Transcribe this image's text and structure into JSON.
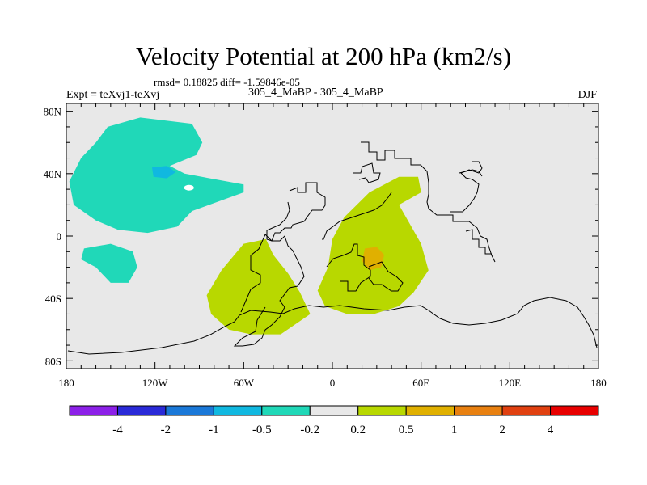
{
  "chart_data": {
    "type": "heatmap",
    "title": "Velocity Potential at 200 hPa (km2/s)",
    "stats_line": "rmsd= 0.18825 diff= -1.59846e-05",
    "left_label": "Expt = teXvj1-teXvj",
    "center_label": "305_4_MaBP - 305_4_MaBP",
    "right_label": "DJF",
    "x_ticks": [
      {
        "lon": -180,
        "label": "180"
      },
      {
        "lon": -120,
        "label": "120W"
      },
      {
        "lon": -60,
        "label": "60W"
      },
      {
        "lon": 0,
        "label": "0"
      },
      {
        "lon": 60,
        "label": "60E"
      },
      {
        "lon": 120,
        "label": "120E"
      },
      {
        "lon": 180,
        "label": "180"
      }
    ],
    "y_ticks": [
      {
        "lat": 80,
        "label": "80N"
      },
      {
        "lat": 40,
        "label": "40N"
      },
      {
        "lat": 0,
        "label": "0"
      },
      {
        "lat": -40,
        "label": "40S"
      },
      {
        "lat": -80,
        "label": "80S"
      }
    ],
    "xlim": [
      -180,
      180
    ],
    "ylim": [
      -85,
      85
    ],
    "colorbar": {
      "colors": [
        "#8c20e8",
        "#2a2ad8",
        "#1a78d8",
        "#10b8e0",
        "#20d8b8",
        "#e8e8e8",
        "#b8d800",
        "#e0b000",
        "#e88010",
        "#e04010",
        "#e80000"
      ],
      "labels": [
        "-4",
        "-2",
        "-1",
        "-0.5",
        "-0.2",
        "0.2",
        "0.5",
        "1",
        "2",
        "4"
      ]
    },
    "contour_regions": [
      {
        "name": "north-pacific-negative",
        "level": "-0.5 to -0.2",
        "color": "#20d8b8",
        "points": [
          [
            -152,
            70
          ],
          [
            -130,
            76
          ],
          [
            -95,
            72
          ],
          [
            -88,
            60
          ],
          [
            -92,
            52
          ],
          [
            -110,
            45
          ],
          [
            -100,
            40
          ],
          [
            -60,
            33
          ],
          [
            -60,
            28
          ],
          [
            -95,
            16
          ],
          [
            -105,
            6
          ],
          [
            -125,
            2
          ],
          [
            -145,
            4
          ],
          [
            -160,
            10
          ],
          [
            -175,
            20
          ],
          [
            -178,
            35
          ],
          [
            -170,
            50
          ],
          [
            -160,
            60
          ]
        ]
      },
      {
        "name": "north-pacific-core",
        "level": "-1 to -0.5",
        "color": "#10b8e0",
        "points": [
          [
            -122,
            44
          ],
          [
            -112,
            45
          ],
          [
            -106,
            41
          ],
          [
            -112,
            37
          ],
          [
            -121,
            38
          ]
        ]
      },
      {
        "name": "south-pacific-negative",
        "level": "-0.5 to -0.2",
        "color": "#20d8b8",
        "points": [
          [
            -168,
            -8
          ],
          [
            -150,
            -5
          ],
          [
            -135,
            -10
          ],
          [
            -132,
            -20
          ],
          [
            -138,
            -30
          ],
          [
            -150,
            -30
          ],
          [
            -160,
            -20
          ],
          [
            -170,
            -15
          ]
        ]
      },
      {
        "name": "south-america-positive",
        "level": "0.2 to 0.5",
        "color": "#b8d800",
        "points": [
          [
            -60,
            -5
          ],
          [
            -45,
            -2
          ],
          [
            -40,
            -12
          ],
          [
            -30,
            -24
          ],
          [
            -22,
            -36
          ],
          [
            -15,
            -50
          ],
          [
            -35,
            -63
          ],
          [
            -55,
            -63
          ],
          [
            -70,
            -60
          ],
          [
            -82,
            -50
          ],
          [
            -85,
            -38
          ],
          [
            -75,
            -22
          ]
        ]
      },
      {
        "name": "africa-positive",
        "level": "0.2 to 0.5",
        "color": "#b8d800",
        "points": [
          [
            -3,
            -20
          ],
          [
            0,
            -2
          ],
          [
            8,
            12
          ],
          [
            25,
            28
          ],
          [
            45,
            38
          ],
          [
            58,
            38
          ],
          [
            60,
            28
          ],
          [
            45,
            20
          ],
          [
            60,
            -5
          ],
          [
            65,
            -22
          ],
          [
            55,
            -36
          ],
          [
            45,
            -45
          ],
          [
            28,
            -50
          ],
          [
            10,
            -50
          ],
          [
            -5,
            -45
          ],
          [
            -10,
            -35
          ]
        ]
      },
      {
        "name": "africa-core",
        "level": "0.5 to 1",
        "color": "#e0b000",
        "points": [
          [
            22,
            -8
          ],
          [
            30,
            -7
          ],
          [
            35,
            -12
          ],
          [
            33,
            -20
          ],
          [
            25,
            -22
          ],
          [
            20,
            -16
          ]
        ]
      }
    ]
  }
}
